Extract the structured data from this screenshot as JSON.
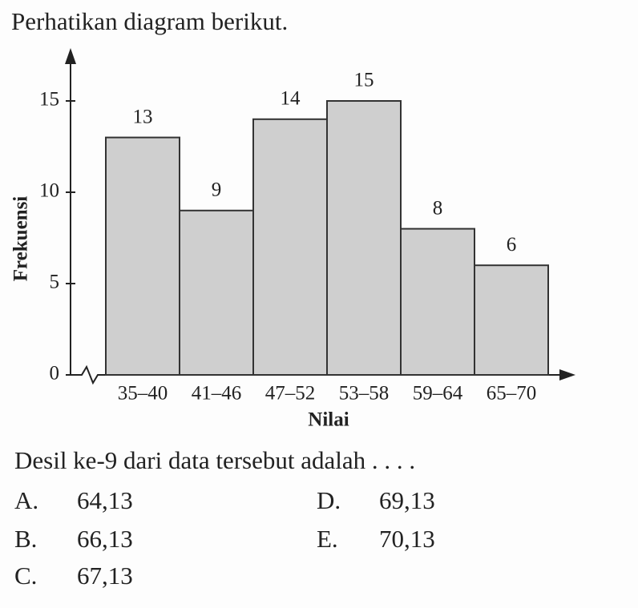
{
  "intro": "Perhatikan diagram berikut.",
  "chart_data": {
    "type": "bar",
    "categories": [
      "35–40",
      "41–46",
      "47–52",
      "53–58",
      "59–64",
      "65–70"
    ],
    "values": [
      13,
      9,
      14,
      15,
      8,
      6
    ],
    "color": "#cfcfcf",
    "x_label": "Nilai",
    "y_label": "Frekuensi",
    "ylim": [
      0,
      17.5
    ],
    "yticks": [
      0,
      5,
      10,
      15
    ],
    "grid": false
  },
  "question": "Desil ke-9 dari data tersebut adalah . . . .",
  "options": [
    {
      "letter": "A.",
      "text": "64,13"
    },
    {
      "letter": "B.",
      "text": "66,13"
    },
    {
      "letter": "C.",
      "text": "67,13"
    },
    {
      "letter": "D.",
      "text": "69,13"
    },
    {
      "letter": "E.",
      "text": "70,13"
    }
  ]
}
